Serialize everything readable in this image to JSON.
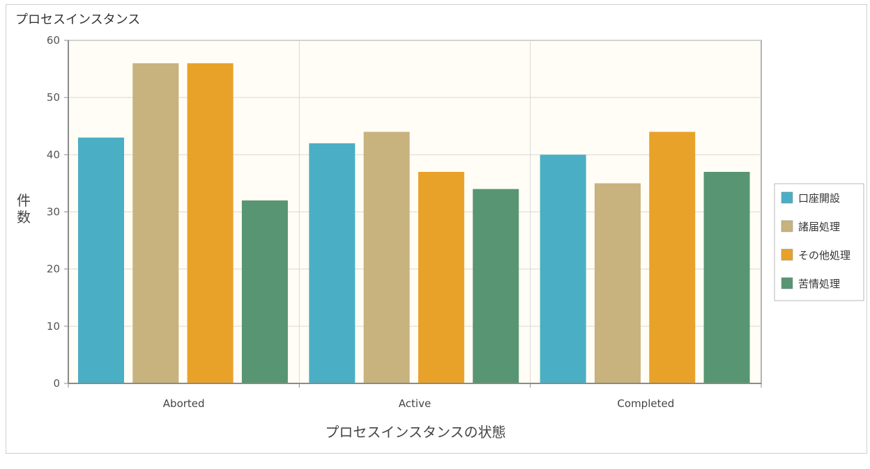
{
  "chart_data": {
    "type": "bar",
    "title": "プロセスインスタンス",
    "xlabel": "プロセスインスタンスの状態",
    "ylabel": "件数",
    "categories": [
      "Aborted",
      "Active",
      "Completed"
    ],
    "ylim": [
      0,
      60
    ],
    "yticks": [
      0,
      10,
      20,
      30,
      40,
      50,
      60
    ],
    "grid": true,
    "legend_position": "right",
    "series": [
      {
        "name": "口座開設",
        "color": "#4aafc4",
        "values": [
          43,
          42,
          40
        ]
      },
      {
        "name": "諸届処理",
        "color": "#c8b27e",
        "values": [
          56,
          44,
          35
        ]
      },
      {
        "name": "その他処理",
        "color": "#e8a229",
        "values": [
          56,
          37,
          44
        ]
      },
      {
        "name": "苦情処理",
        "color": "#589572",
        "values": [
          32,
          34,
          37
        ]
      }
    ],
    "colors": {
      "plot_background": "#fffdf5",
      "grid": "#d8d8d8",
      "axis": "#8a8a8a"
    }
  }
}
